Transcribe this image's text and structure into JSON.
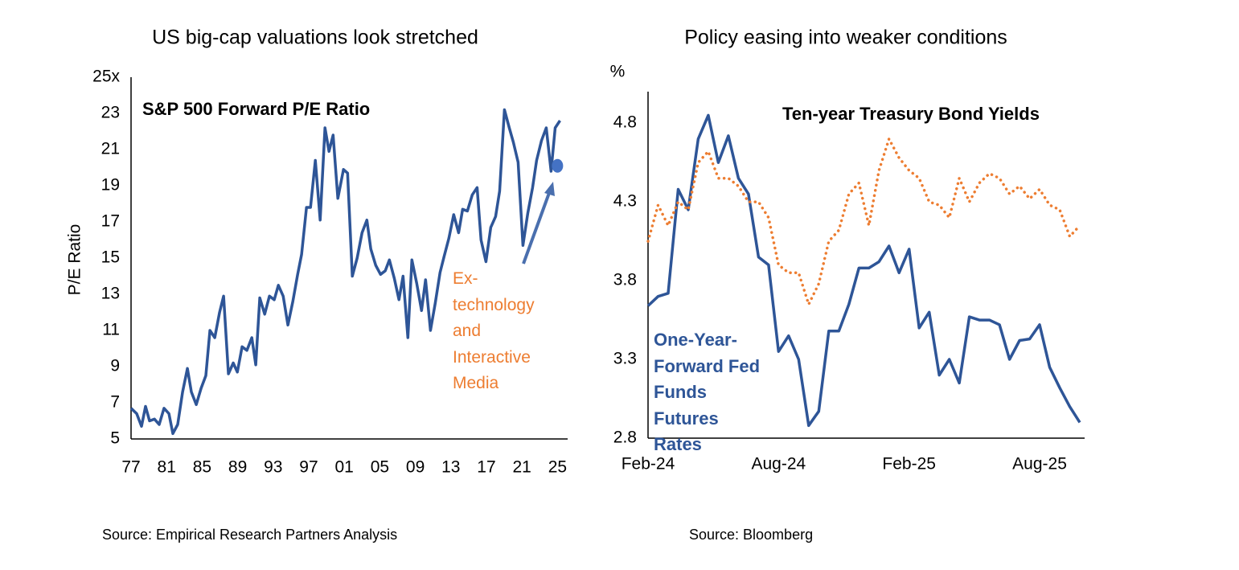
{
  "chart_data": [
    {
      "type": "line",
      "title": "US big-cap valuations look stretched",
      "y_label": "P/E Ratio",
      "x": [
        1977.0,
        1977.63,
        1978.18,
        1978.63,
        1979.08,
        1979.63,
        1980.17,
        1980.71,
        1981.26,
        1981.71,
        1982.25,
        1982.8,
        1983.34,
        1983.79,
        1984.34,
        1984.88,
        1985.42,
        1985.88,
        1986.42,
        1986.96,
        1987.42,
        1987.96,
        1988.5,
        1988.96,
        1989.5,
        1990.04,
        1990.59,
        1991.04,
        1991.49,
        1992.04,
        1992.58,
        1993.12,
        1993.58,
        1994.12,
        1994.66,
        1995.21,
        1995.75,
        1996.2,
        1996.75,
        1997.2,
        1997.74,
        1998.29,
        1998.83,
        1999.28,
        1999.74,
        2000.28,
        2000.91,
        2001.37,
        2001.91,
        2002.45,
        2003.0,
        2003.54,
        2003.99,
        2004.54,
        2005.08,
        2005.62,
        2006.08,
        2006.62,
        2007.16,
        2007.62,
        2008.16,
        2008.61,
        2009.16,
        2009.7,
        2010.15,
        2010.7,
        2011.24,
        2011.78,
        2012.24,
        2012.78,
        2013.32,
        2013.87,
        2014.32,
        2014.86,
        2015.41,
        2015.95,
        2016.4,
        2016.95,
        2017.49,
        2018.03,
        2018.49,
        2019.03,
        2019.57,
        2020.03,
        2020.57,
        2021.11,
        2021.66,
        2022.2,
        2022.65,
        2023.2,
        2023.74,
        2024.28,
        2024.74,
        2025.28
      ],
      "series": [
        {
          "name": "S&P 500 Forward P/E Ratio",
          "color": "#2e5597",
          "values": [
            6.7,
            6.4,
            5.7,
            6.8,
            6.0,
            6.1,
            5.8,
            6.7,
            6.4,
            5.3,
            5.8,
            7.6,
            8.9,
            7.6,
            6.9,
            7.8,
            8.5,
            11.0,
            10.6,
            12.0,
            12.9,
            8.6,
            9.2,
            8.7,
            10.1,
            9.9,
            10.6,
            9.1,
            12.8,
            11.9,
            12.9,
            12.7,
            13.5,
            12.9,
            11.3,
            12.6,
            14.1,
            15.2,
            17.8,
            17.8,
            20.4,
            17.1,
            22.2,
            20.9,
            21.8,
            18.3,
            19.9,
            19.7,
            14.0,
            15.0,
            16.4,
            17.1,
            15.5,
            14.6,
            14.1,
            14.3,
            14.9,
            13.9,
            12.7,
            14.0,
            10.6,
            14.9,
            13.6,
            12.1,
            13.8,
            11.0,
            12.5,
            14.2,
            15.1,
            16.1,
            17.4,
            16.4,
            17.7,
            17.6,
            18.5,
            18.9,
            16.0,
            14.8,
            16.7,
            17.3,
            18.7,
            23.2,
            22.2,
            21.4,
            20.3,
            15.7,
            17.5,
            18.9,
            20.4,
            21.5,
            22.2,
            19.8,
            22.2,
            22.6
          ]
        }
      ],
      "highlight": {
        "x": 2025.0,
        "value": 20.1,
        "label": "Ex-technology and Interactive Media",
        "color": "#4472c4",
        "label_color": "#ed7d31"
      },
      "xlim": [
        1977,
        2025.6
      ],
      "xticks": [
        {
          "value": 1977,
          "label": "77"
        },
        {
          "value": 1981,
          "label": "81"
        },
        {
          "value": 1985,
          "label": "85"
        },
        {
          "value": 1989,
          "label": "89"
        },
        {
          "value": 1993,
          "label": "93"
        },
        {
          "value": 1997,
          "label": "97"
        },
        {
          "value": 2001,
          "label": "01"
        },
        {
          "value": 2005,
          "label": "05"
        },
        {
          "value": 2009,
          "label": "09"
        },
        {
          "value": 2013,
          "label": "13"
        },
        {
          "value": 2017,
          "label": "17"
        },
        {
          "value": 2021,
          "label": "21"
        },
        {
          "value": 2025,
          "label": "25"
        }
      ],
      "ylim": [
        5,
        25
      ],
      "yticks": [
        5,
        7,
        9,
        11,
        13,
        15,
        17,
        19,
        21,
        23,
        {
          "value": 25,
          "label": "25x"
        }
      ],
      "source": "Source: Empirical Research Partners Analysis"
    },
    {
      "type": "line",
      "title": "Policy easing into weaker conditions",
      "y_unit": "%",
      "categories": [
        "Feb-24",
        null,
        null,
        null,
        null,
        null,
        null,
        null,
        null,
        null,
        null,
        null,
        null,
        "Aug-24",
        null,
        null,
        null,
        null,
        null,
        null,
        null,
        null,
        null,
        null,
        null,
        null,
        "Feb-25",
        null,
        null,
        null,
        null,
        null,
        null,
        null,
        null,
        null,
        null,
        null,
        null,
        "Aug-25",
        null,
        null,
        null,
        null
      ],
      "series": [
        {
          "name": "One-Year-Forward Fed Funds Futures Rates",
          "color": "#2e5597",
          "values": [
            3.64,
            3.7,
            3.72,
            4.38,
            4.25,
            4.7,
            4.85,
            4.55,
            4.72,
            4.45,
            4.35,
            3.95,
            3.9,
            3.35,
            3.45,
            3.3,
            2.88,
            2.97,
            3.48,
            3.48,
            3.65,
            3.88,
            3.88,
            3.92,
            4.02,
            3.85,
            4.0,
            3.5,
            3.6,
            3.2,
            3.3,
            3.15,
            3.57,
            3.55,
            3.55,
            3.52,
            3.3,
            3.42,
            3.43,
            3.52,
            3.25,
            3.12,
            3.0,
            2.9
          ]
        },
        {
          "name": "Ten-year Treasury Bond Yields",
          "color": "#ed7d31",
          "style": "dotted",
          "values": [
            4.05,
            4.28,
            4.15,
            4.3,
            4.25,
            4.55,
            4.62,
            4.45,
            4.45,
            4.4,
            4.3,
            4.3,
            4.2,
            3.9,
            3.85,
            3.85,
            3.65,
            3.78,
            4.05,
            4.12,
            4.35,
            4.42,
            4.15,
            4.5,
            4.7,
            4.58,
            4.5,
            4.45,
            4.3,
            4.28,
            4.2,
            4.45,
            4.3,
            4.42,
            4.48,
            4.45,
            4.35,
            4.4,
            4.32,
            4.38,
            4.28,
            4.25,
            4.08,
            4.15
          ]
        }
      ],
      "ylim": [
        2.8,
        5.0
      ],
      "yticks": [
        2.8,
        3.3,
        3.8,
        4.3,
        4.8
      ],
      "source": "Source: Bloomberg"
    }
  ]
}
